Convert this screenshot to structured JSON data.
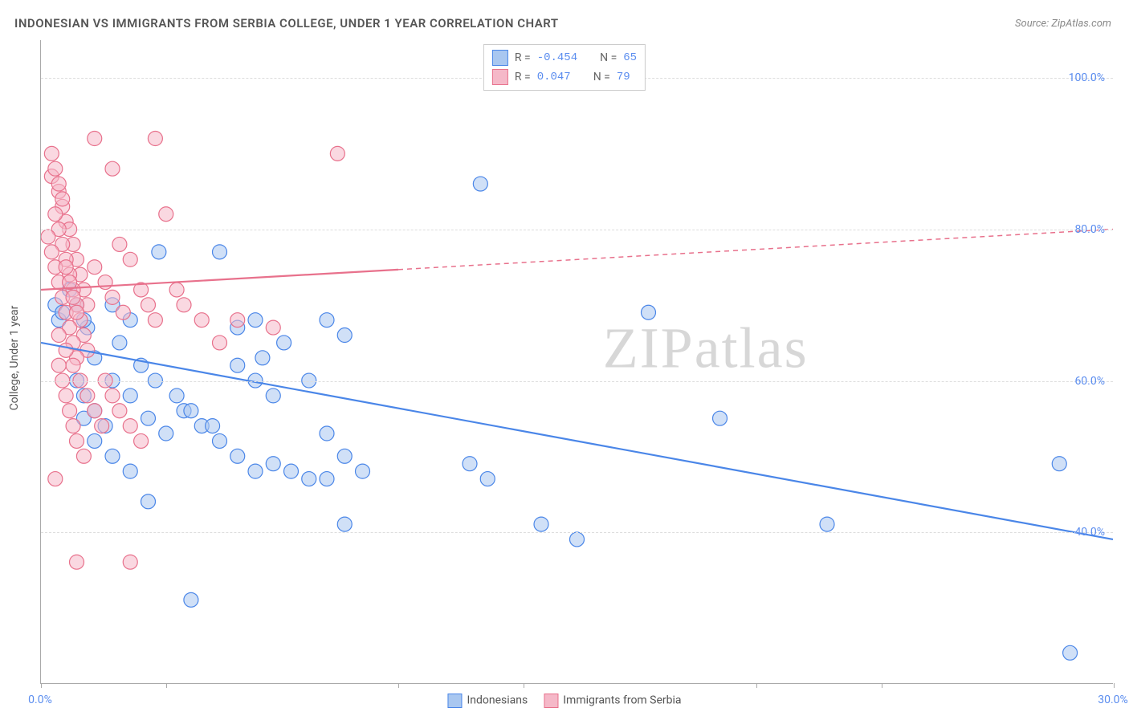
{
  "title": "INDONESIAN VS IMMIGRANTS FROM SERBIA COLLEGE, UNDER 1 YEAR CORRELATION CHART",
  "source": "Source: ZipAtlas.com",
  "y_axis_label": "College, Under 1 year",
  "watermark": "ZIPatlas",
  "chart": {
    "type": "scatter",
    "xlim": [
      0,
      30
    ],
    "ylim": [
      20,
      105
    ],
    "x_ticks_at": [
      0,
      3.5,
      10,
      13.5,
      20,
      23.5,
      30
    ],
    "x_tick_labels": {
      "0": "0.0%",
      "30": "30.0%"
    },
    "y_ticks": [
      40,
      60,
      80,
      100
    ],
    "y_tick_labels": {
      "40": "40.0%",
      "60": "60.0%",
      "80": "80.0%",
      "100": "100.0%"
    },
    "background_color": "#ffffff",
    "grid_color": "#dddddd",
    "marker_radius": 9,
    "marker_opacity": 0.55,
    "line_width": 2.2
  },
  "series": [
    {
      "id": "indonesians",
      "label": "Indonesians",
      "color_fill": "#a9c7f0",
      "color_stroke": "#4a86e8",
      "r": "-0.454",
      "n": "65",
      "trend": {
        "x1": 0,
        "y1": 65,
        "x2": 30,
        "y2": 39,
        "dash_from_x": null
      },
      "points": [
        [
          0.4,
          70
        ],
        [
          0.5,
          68
        ],
        [
          0.6,
          69
        ],
        [
          12.3,
          86
        ],
        [
          3.3,
          77
        ],
        [
          5.0,
          77
        ],
        [
          1.3,
          67
        ],
        [
          1.5,
          63
        ],
        [
          2.0,
          60
        ],
        [
          2.5,
          58
        ],
        [
          3.0,
          55
        ],
        [
          3.5,
          53
        ],
        [
          4.0,
          56
        ],
        [
          4.5,
          54
        ],
        [
          5.0,
          52
        ],
        [
          5.5,
          50
        ],
        [
          6.0,
          48
        ],
        [
          6.5,
          49
        ],
        [
          7.0,
          48
        ],
        [
          7.5,
          47
        ],
        [
          8.0,
          68
        ],
        [
          8.5,
          66
        ],
        [
          6.0,
          68
        ],
        [
          6.8,
          65
        ],
        [
          7.5,
          60
        ],
        [
          8.0,
          47
        ],
        [
          8.5,
          41
        ],
        [
          3.0,
          44
        ],
        [
          4.2,
          31
        ],
        [
          1.2,
          55
        ],
        [
          1.5,
          52
        ],
        [
          2.0,
          50
        ],
        [
          2.5,
          48
        ],
        [
          1.0,
          60
        ],
        [
          1.2,
          58
        ],
        [
          1.5,
          56
        ],
        [
          1.8,
          54
        ],
        [
          12.0,
          49
        ],
        [
          12.5,
          47
        ],
        [
          14.0,
          41
        ],
        [
          17.0,
          69
        ],
        [
          15.0,
          39
        ],
        [
          19.0,
          55
        ],
        [
          22.0,
          41
        ],
        [
          28.5,
          49
        ],
        [
          28.8,
          24
        ],
        [
          5.5,
          62
        ],
        [
          6.0,
          60
        ],
        [
          6.5,
          58
        ],
        [
          0.8,
          72
        ],
        [
          1.0,
          70
        ],
        [
          1.2,
          68
        ],
        [
          2.2,
          65
        ],
        [
          2.8,
          62
        ],
        [
          3.2,
          60
        ],
        [
          3.8,
          58
        ],
        [
          4.2,
          56
        ],
        [
          4.8,
          54
        ],
        [
          8.0,
          53
        ],
        [
          8.5,
          50
        ],
        [
          9.0,
          48
        ],
        [
          5.5,
          67
        ],
        [
          6.2,
          63
        ],
        [
          2.0,
          70
        ],
        [
          2.5,
          68
        ]
      ]
    },
    {
      "id": "serbia",
      "label": "Immigrants from Serbia",
      "color_fill": "#f5b8c8",
      "color_stroke": "#e8718c",
      "r": " 0.047",
      "n": "79",
      "trend": {
        "x1": 0,
        "y1": 72,
        "x2": 30,
        "y2": 80,
        "dash_from_x": 10
      },
      "points": [
        [
          0.3,
          87
        ],
        [
          0.5,
          85
        ],
        [
          0.6,
          83
        ],
        [
          0.7,
          81
        ],
        [
          0.8,
          80
        ],
        [
          0.9,
          78
        ],
        [
          1.0,
          76
        ],
        [
          1.1,
          74
        ],
        [
          1.2,
          72
        ],
        [
          1.3,
          70
        ],
        [
          0.4,
          82
        ],
        [
          0.5,
          80
        ],
        [
          0.6,
          78
        ],
        [
          0.7,
          76
        ],
        [
          0.8,
          74
        ],
        [
          0.9,
          72
        ],
        [
          1.0,
          70
        ],
        [
          1.1,
          68
        ],
        [
          1.2,
          66
        ],
        [
          1.3,
          64
        ],
        [
          0.5,
          62
        ],
        [
          0.6,
          60
        ],
        [
          0.7,
          58
        ],
        [
          0.8,
          56
        ],
        [
          0.9,
          54
        ],
        [
          1.0,
          52
        ],
        [
          1.2,
          50
        ],
        [
          0.4,
          47
        ],
        [
          3.2,
          92
        ],
        [
          1.5,
          92
        ],
        [
          2.0,
          88
        ],
        [
          2.2,
          78
        ],
        [
          2.5,
          76
        ],
        [
          2.8,
          72
        ],
        [
          3.0,
          70
        ],
        [
          3.2,
          68
        ],
        [
          1.8,
          60
        ],
        [
          2.0,
          58
        ],
        [
          2.2,
          56
        ],
        [
          2.5,
          54
        ],
        [
          2.8,
          52
        ],
        [
          1.0,
          36
        ],
        [
          2.5,
          36
        ],
        [
          3.5,
          82
        ],
        [
          3.8,
          72
        ],
        [
          4.0,
          70
        ],
        [
          4.5,
          68
        ],
        [
          5.0,
          65
        ],
        [
          5.5,
          68
        ],
        [
          6.5,
          67
        ],
        [
          8.3,
          90
        ],
        [
          0.2,
          79
        ],
        [
          0.3,
          77
        ],
        [
          0.4,
          75
        ],
        [
          0.5,
          73
        ],
        [
          0.6,
          71
        ],
        [
          0.7,
          69
        ],
        [
          0.8,
          67
        ],
        [
          0.9,
          65
        ],
        [
          1.0,
          63
        ],
        [
          0.3,
          90
        ],
        [
          0.4,
          88
        ],
        [
          0.5,
          86
        ],
        [
          0.6,
          84
        ],
        [
          0.7,
          75
        ],
        [
          0.8,
          73
        ],
        [
          0.9,
          71
        ],
        [
          1.0,
          69
        ],
        [
          1.5,
          75
        ],
        [
          1.8,
          73
        ],
        [
          2.0,
          71
        ],
        [
          2.3,
          69
        ],
        [
          0.5,
          66
        ],
        [
          0.7,
          64
        ],
        [
          0.9,
          62
        ],
        [
          1.1,
          60
        ],
        [
          1.3,
          58
        ],
        [
          1.5,
          56
        ],
        [
          1.7,
          54
        ]
      ]
    }
  ],
  "legend_top": {
    "r_label": "R =",
    "n_label": "N ="
  }
}
